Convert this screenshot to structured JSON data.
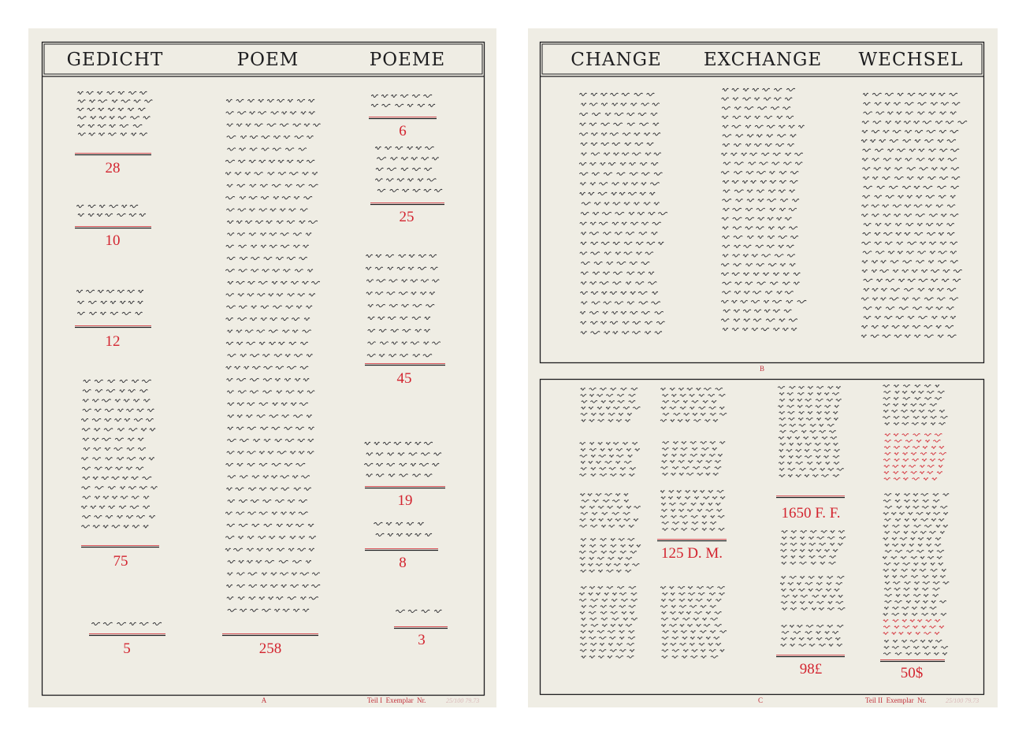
{
  "sheet_a": {
    "headers": [
      "GEDICHT",
      "POEM",
      "POEME"
    ],
    "counts": {
      "gedicht": [
        "28",
        "10",
        "12",
        "75",
        "5"
      ],
      "poem": [
        "258"
      ],
      "poeme": [
        "6",
        "25",
        "45",
        "19",
        "8",
        "3"
      ]
    },
    "section_letter": "A",
    "footer": "Teil I  Exemplar  Nr.",
    "signature": "25/100  79.73"
  },
  "sheet_b": {
    "headers": [
      "CHANGE",
      "EXCHANGE",
      "WECHSEL"
    ],
    "section_letter_top": "B",
    "prices": [
      "125 D. M.",
      "1650 F. F.",
      "98£",
      "50$"
    ],
    "section_letter_bottom": "C",
    "footer": "Teil II  Exemplar  Nr.",
    "signature": "25/100  79.73"
  },
  "colors": {
    "paper": "#efede4",
    "ink": "#1d1d1f",
    "red": "#d3242f"
  }
}
